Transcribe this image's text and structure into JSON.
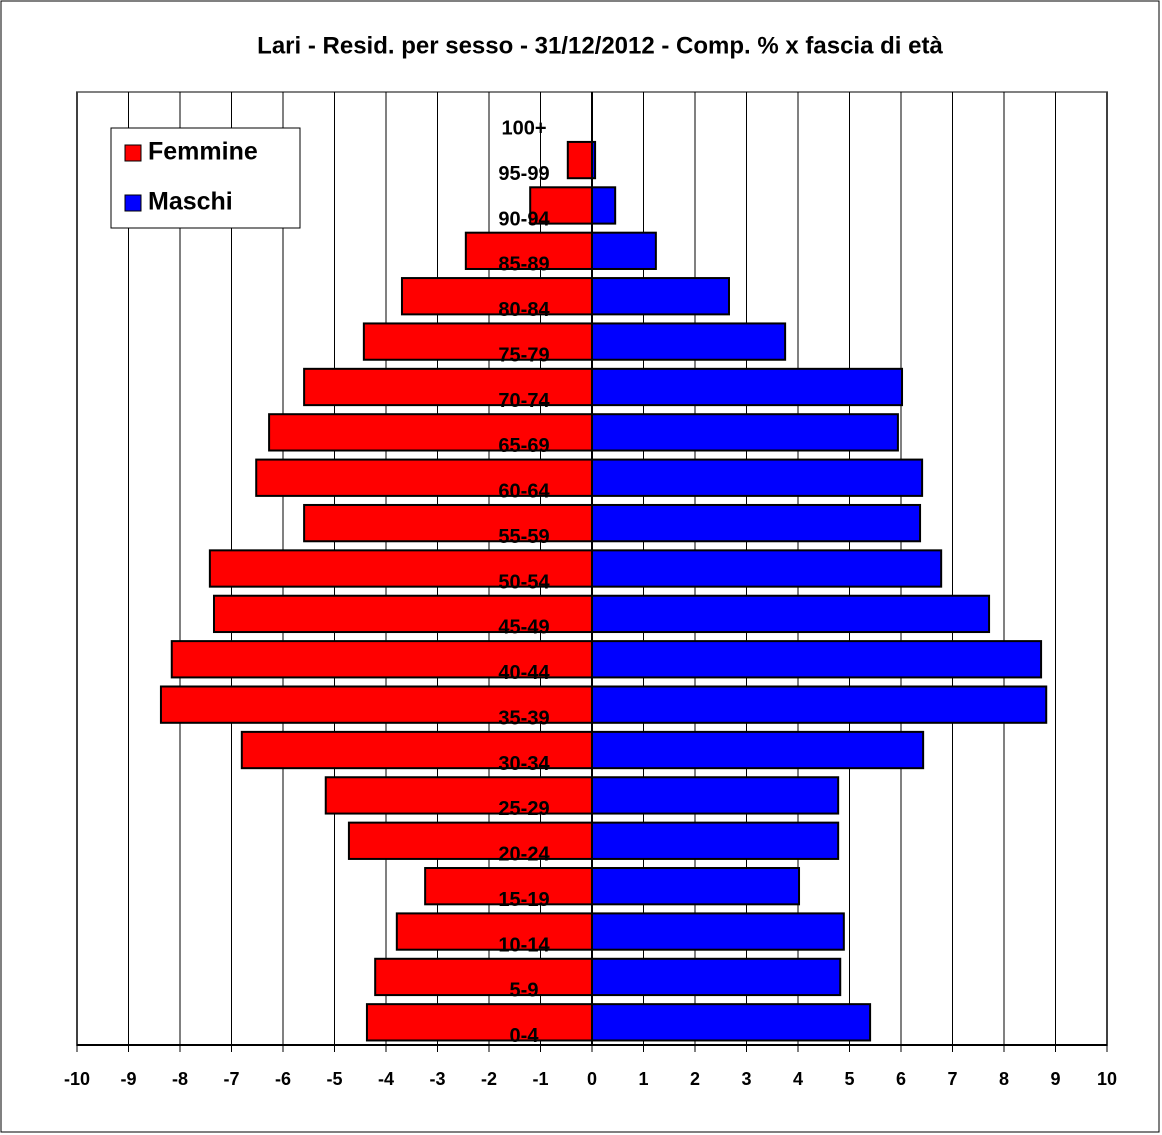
{
  "chart_data": {
    "type": "pyramid",
    "title": "Lari - Resid. per sesso - 31/12/2012 - Comp. % x fascia di età",
    "categories": [
      "0-4",
      "5-9",
      "10-14",
      "15-19",
      "20-24",
      "25-29",
      "30-34",
      "35-39",
      "40-44",
      "45-49",
      "50-54",
      "55-59",
      "60-64",
      "65-69",
      "70-74",
      "75-79",
      "80-84",
      "85-89",
      "90-94",
      "95-99",
      "100+"
    ],
    "series": [
      {
        "name": "Femmine",
        "color": "#ff0000",
        "values": [
          -4.37,
          -4.21,
          -3.79,
          -3.24,
          -4.72,
          -5.17,
          -6.8,
          -8.37,
          -8.16,
          -7.34,
          -7.42,
          -5.59,
          -6.52,
          -6.27,
          -5.59,
          -4.43,
          -3.69,
          -2.45,
          -1.2,
          -0.47,
          0
        ]
      },
      {
        "name": "Maschi",
        "color": "#0000ff",
        "values": [
          5.4,
          4.82,
          4.89,
          4.02,
          4.78,
          4.78,
          6.43,
          8.82,
          8.72,
          7.71,
          6.78,
          6.37,
          6.41,
          5.94,
          6.02,
          3.75,
          2.66,
          1.24,
          0.45,
          0.06,
          0
        ]
      }
    ],
    "xlim": [
      -10,
      10
    ],
    "xticks": [
      -10,
      -9,
      -8,
      -7,
      -6,
      -5,
      -4,
      -3,
      -2,
      -1,
      0,
      1,
      2,
      3,
      4,
      5,
      6,
      7,
      8,
      9,
      10
    ],
    "grid": true,
    "legend": "upper left"
  }
}
